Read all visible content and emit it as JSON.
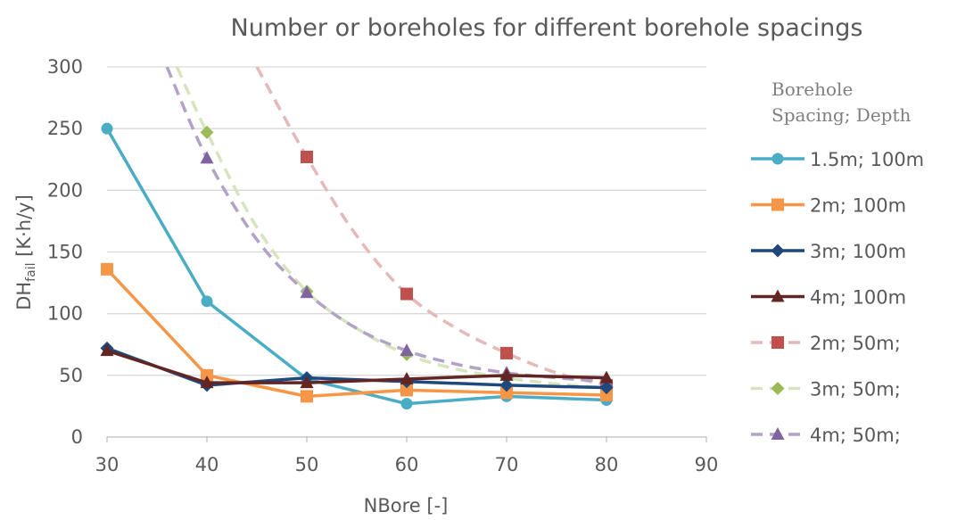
{
  "chart_data": {
    "type": "line",
    "title": "Number or boreholes for different borehole spacings",
    "xlabel": "NBore [-]",
    "ylabel_main": "DH",
    "ylabel_sub": "fail",
    "ylabel_unit": " [K·h/y]",
    "xlim": [
      30,
      90
    ],
    "ylim": [
      0,
      300
    ],
    "xticks": [
      30,
      40,
      50,
      60,
      70,
      80,
      90
    ],
    "yticks": [
      0,
      50,
      100,
      150,
      200,
      250,
      300
    ],
    "grid": "horizontal",
    "legend_placement": "right",
    "legend_title_line1": "Borehole",
    "legend_title_line2": "Spacing; Depth",
    "x": [
      30,
      40,
      50,
      60,
      70,
      80
    ],
    "series": [
      {
        "name": "1.5m;  100m",
        "marker": "circle",
        "dashed": false,
        "color": "#4bacc6",
        "values": [
          250,
          110,
          47,
          27,
          33,
          30
        ]
      },
      {
        "name": "2m;  100m",
        "marker": "square",
        "dashed": false,
        "color": "#f79646",
        "values": [
          136,
          50,
          33,
          38,
          36,
          34
        ]
      },
      {
        "name": "3m;  100m",
        "marker": "diamond",
        "dashed": false,
        "color": "#1f497d",
        "values": [
          72,
          42,
          48,
          45,
          42,
          40
        ]
      },
      {
        "name": "4m;  100m",
        "marker": "triangle",
        "dashed": false,
        "color": "#632523",
        "values": [
          70,
          44,
          44,
          47,
          50,
          48
        ]
      },
      {
        "name": "2m;  50m;",
        "marker": "square",
        "dashed": true,
        "color": "#c0504d",
        "line_color": "#e6b9b8",
        "values": [
          null,
          null,
          227,
          116,
          68,
          42
        ],
        "curve": [
          [
            45,
            300
          ],
          [
            50,
            227
          ],
          [
            55,
            163
          ],
          [
            60,
            116
          ],
          [
            65,
            88
          ],
          [
            70,
            68
          ],
          [
            75,
            52
          ],
          [
            80,
            42
          ]
        ]
      },
      {
        "name": "3m;  50m;",
        "marker": "diamond",
        "dashed": true,
        "color": "#9bbb59",
        "line_color": "#d7e4bd",
        "values": [
          null,
          247,
          118,
          67,
          48,
          40
        ],
        "curve": [
          [
            37,
            300
          ],
          [
            40,
            247
          ],
          [
            45,
            170
          ],
          [
            50,
            118
          ],
          [
            55,
            88
          ],
          [
            60,
            67
          ],
          [
            65,
            55
          ],
          [
            70,
            48
          ],
          [
            75,
            43
          ],
          [
            80,
            40
          ]
        ]
      },
      {
        "name": "4m;  50m;",
        "marker": "triangle",
        "dashed": true,
        "color": "#8064a2",
        "line_color": "#b3a2c7",
        "values": [
          null,
          226,
          117,
          70,
          52,
          45
        ],
        "curve": [
          [
            36,
            300
          ],
          [
            40,
            226
          ],
          [
            45,
            160
          ],
          [
            50,
            117
          ],
          [
            55,
            88
          ],
          [
            60,
            70
          ],
          [
            65,
            59
          ],
          [
            70,
            52
          ],
          [
            75,
            48
          ],
          [
            80,
            45
          ]
        ]
      }
    ]
  }
}
